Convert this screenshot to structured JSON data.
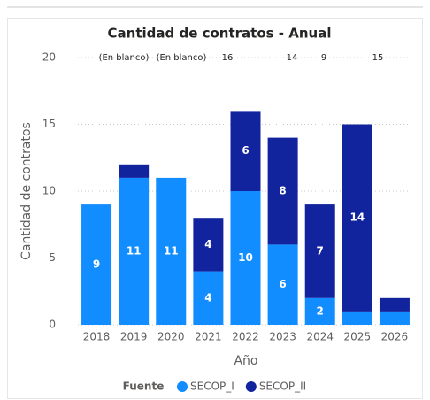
{
  "chart_data": {
    "type": "stacked_bar",
    "title": "Cantidad de contratos - Anual",
    "x_label": "Año",
    "y_label": "Cantidad de contratos",
    "legend_title": "Fuente",
    "categories": [
      "2018",
      "2019",
      "2020",
      "2021",
      "2022",
      "2023",
      "2024",
      "2025",
      "2026"
    ],
    "series": [
      {
        "name": "SECOP_I",
        "color": "#118dff",
        "values": [
          9,
          11,
          11,
          4,
          10,
          6,
          2,
          1,
          1
        ]
      },
      {
        "name": "SECOP_II",
        "color": "#12239e",
        "values": [
          null,
          1,
          null,
          4,
          6,
          8,
          7,
          14,
          1
        ]
      }
    ],
    "top_labels": [
      "(En blanco)",
      "(En blanco)",
      "16",
      "14",
      "9",
      "15"
    ],
    "ylim": [
      0,
      20
    ],
    "yticks": [
      0,
      5,
      10,
      15,
      20
    ],
    "grid": true
  }
}
